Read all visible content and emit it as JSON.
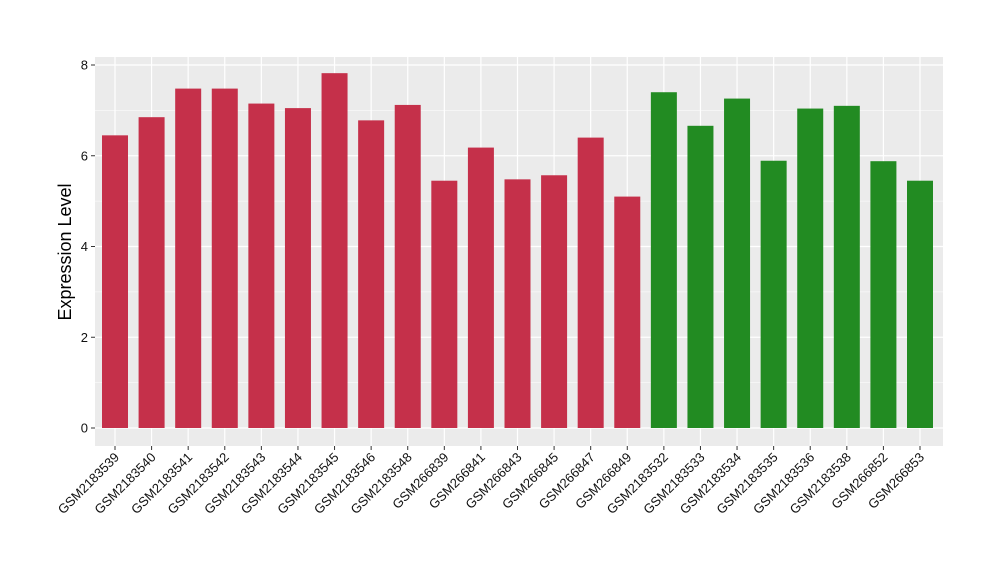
{
  "chart_data": {
    "type": "bar",
    "title": "",
    "xlabel": "",
    "ylabel": "Expression Level",
    "ylim": [
      0,
      8.2
    ],
    "yticks": [
      0,
      2,
      4,
      6,
      8
    ],
    "grid": true,
    "legend": "none",
    "colors": {
      "group_a": "#c5304a",
      "group_b": "#228b22",
      "panel": "#ebebeb",
      "grid": "#ffffff"
    },
    "categories": [
      "GSM2183539",
      "GSM2183540",
      "GSM2183541",
      "GSM2183542",
      "GSM2183543",
      "GSM2183544",
      "GSM2183545",
      "GSM2183546",
      "GSM2183548",
      "GSM266839",
      "GSM266841",
      "GSM266843",
      "GSM266845",
      "GSM266847",
      "GSM266849",
      "GSM2183532",
      "GSM2183533",
      "GSM2183534",
      "GSM2183535",
      "GSM2183536",
      "GSM2183538",
      "GSM266852",
      "GSM266853"
    ],
    "values": [
      6.45,
      6.85,
      7.48,
      7.48,
      7.15,
      7.05,
      7.82,
      6.78,
      7.12,
      5.45,
      6.18,
      5.48,
      5.57,
      6.4,
      5.1,
      7.4,
      6.66,
      7.26,
      5.89,
      7.04,
      7.1,
      5.88,
      5.45
    ],
    "groups": [
      "group_a",
      "group_a",
      "group_a",
      "group_a",
      "group_a",
      "group_a",
      "group_a",
      "group_a",
      "group_a",
      "group_a",
      "group_a",
      "group_a",
      "group_a",
      "group_a",
      "group_a",
      "group_b",
      "group_b",
      "group_b",
      "group_b",
      "group_b",
      "group_b",
      "group_b",
      "group_b"
    ]
  }
}
